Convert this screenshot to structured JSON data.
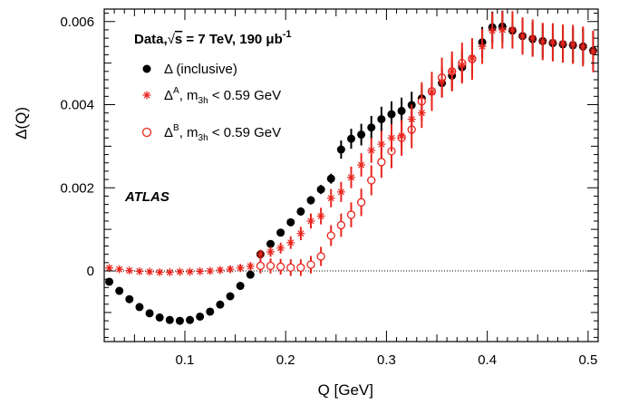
{
  "chart_data": {
    "type": "scatter",
    "xlabel": "Q [GeV]",
    "ylabel": "Δ(Q)",
    "xlim": [
      0.02,
      0.51
    ],
    "ylim": [
      -0.0017,
      0.0063
    ],
    "xticks": [
      0.1,
      0.2,
      0.3,
      0.4,
      0.5
    ],
    "xtick_labels": [
      "0.1",
      "0.2",
      "0.3",
      "0.4",
      "0.5"
    ],
    "yticks": [
      0,
      0.002,
      0.004,
      0.006
    ],
    "ytick_labels": [
      "0",
      "0.002",
      "0.004",
      "0.006"
    ],
    "header": {
      "prefix": "Data,",
      "sqrt_symbol": "√",
      "s": "s",
      "rest": " = 7 TeV, 190 μb",
      "superscript": "-1"
    },
    "experiment_label": "ATLAS",
    "reference_line": {
      "y": 0,
      "style": "dotted"
    },
    "colors": {
      "inclusive": "#000000",
      "A": "#e8251d",
      "B": "#e8251d"
    },
    "legend_position": "top-left",
    "series": [
      {
        "name": "Δ (inclusive)",
        "legend": {
          "symbol": "Δ",
          "sup": "",
          "text": " (inclusive)",
          "sub_prefix": "",
          "sub": "",
          "suffix": ""
        },
        "marker": "filled-circle",
        "x": [
          0.025,
          0.035,
          0.045,
          0.055,
          0.065,
          0.075,
          0.085,
          0.095,
          0.105,
          0.115,
          0.125,
          0.135,
          0.145,
          0.155,
          0.165,
          0.175,
          0.185,
          0.195,
          0.205,
          0.215,
          0.225,
          0.235,
          0.245,
          0.255,
          0.265,
          0.275,
          0.285,
          0.295,
          0.305,
          0.315,
          0.325,
          0.335,
          0.345,
          0.355,
          0.365,
          0.375,
          0.385,
          0.395,
          0.405,
          0.415,
          0.425,
          0.435,
          0.445,
          0.455,
          0.465,
          0.475,
          0.485,
          0.495,
          0.505
        ],
        "y": [
          -0.00026,
          -0.00048,
          -0.00068,
          -0.00087,
          -0.00102,
          -0.00112,
          -0.00118,
          -0.0012,
          -0.00118,
          -0.0011,
          -0.00098,
          -0.00081,
          -0.00061,
          -0.00036,
          -9e-05,
          0.0004,
          0.00065,
          0.00092,
          0.00117,
          0.00143,
          0.0017,
          0.00196,
          0.00222,
          0.00292,
          0.00318,
          0.00328,
          0.00345,
          0.00365,
          0.00377,
          0.00385,
          0.00399,
          0.00415,
          0.00432,
          0.00452,
          0.0047,
          0.0049,
          0.0051,
          0.0055,
          0.00586,
          0.00588,
          0.00578,
          0.00565,
          0.00558,
          0.00553,
          0.00548,
          0.00545,
          0.00543,
          0.0054,
          0.0053
        ],
        "err": [
          4e-05,
          4e-05,
          4e-05,
          4e-05,
          4e-05,
          4e-05,
          4e-05,
          4e-05,
          4e-05,
          4e-05,
          4e-05,
          5e-05,
          5e-05,
          6e-05,
          6e-05,
          7e-05,
          8e-05,
          8e-05,
          9e-05,
          0.0001,
          0.0001,
          0.00011,
          0.00012,
          0.00022,
          0.00024,
          0.00026,
          0.00028,
          0.0003,
          0.00031,
          0.00032,
          0.00032,
          0.00033,
          0.00034,
          0.00034,
          0.00035,
          0.00035,
          0.00036,
          0.00037,
          0.00038,
          0.00038,
          0.00038,
          0.00039,
          0.0004,
          0.0004,
          0.00041,
          0.00042,
          0.00042,
          0.00043,
          0.00045
        ]
      },
      {
        "name": "Δ^A, m_3h < 0.59 GeV",
        "legend": {
          "symbol": "Δ",
          "sup": "A",
          "text": "",
          "sub_prefix": ", m",
          "sub": "3h",
          "suffix": " < 0.59 GeV"
        },
        "marker": "asterisk",
        "x": [
          0.025,
          0.035,
          0.045,
          0.055,
          0.065,
          0.075,
          0.085,
          0.095,
          0.105,
          0.115,
          0.125,
          0.135,
          0.145,
          0.155,
          0.165,
          0.175,
          0.185,
          0.195,
          0.205,
          0.215,
          0.225,
          0.235,
          0.245,
          0.255,
          0.265,
          0.275,
          0.285,
          0.295,
          0.305,
          0.315,
          0.325,
          0.335,
          0.345,
          0.355,
          0.365,
          0.375,
          0.385,
          0.395,
          0.405,
          0.415,
          0.425,
          0.435,
          0.445,
          0.455,
          0.465,
          0.475,
          0.485,
          0.495,
          0.505
        ],
        "y": [
          7e-05,
          4e-05,
          1e-05,
          -1e-05,
          -2e-05,
          -3e-05,
          -3e-05,
          -2e-05,
          -2e-05,
          -1e-05,
          0.0,
          2e-05,
          4e-05,
          7e-05,
          0.00011,
          0.0004,
          0.00046,
          0.00055,
          0.00068,
          0.0009,
          0.0012,
          0.00132,
          0.00175,
          0.0019,
          0.00225,
          0.00255,
          0.0029,
          0.00305,
          0.0032,
          0.00325,
          0.00365,
          0.0038,
          0.0043,
          0.00455,
          0.0048,
          0.00495,
          0.00512,
          0.0054,
          0.00578,
          0.0058,
          0.0058,
          0.00565,
          0.0056,
          0.00552,
          0.0055,
          0.00547,
          0.00545,
          0.0054,
          0.00528
        ],
        "err": [
          5e-05,
          5e-05,
          5e-05,
          5e-05,
          5e-05,
          5e-05,
          5e-05,
          5e-05,
          5e-05,
          5e-05,
          6e-05,
          7e-05,
          8e-05,
          9e-05,
          0.0001,
          0.00011,
          0.00012,
          0.00013,
          0.00015,
          0.00016,
          0.00018,
          0.0002,
          0.00022,
          0.00024,
          0.00026,
          0.00028,
          0.0003,
          0.00032,
          0.00033,
          0.00034,
          0.00035,
          0.00036,
          0.00037,
          0.00038,
          0.00039,
          0.0004,
          0.0004,
          0.00042,
          0.00044,
          0.00045,
          0.00045,
          0.00045,
          0.00045,
          0.00045,
          0.00046,
          0.00046,
          0.00047,
          0.00048,
          0.0005
        ]
      },
      {
        "name": "Δ^B, m_3h < 0.59 GeV",
        "legend": {
          "symbol": "Δ",
          "sup": "B",
          "text": "",
          "sub_prefix": ", m",
          "sub": "3h",
          "suffix": " < 0.59 GeV"
        },
        "marker": "open-circle",
        "x": [
          0.175,
          0.185,
          0.195,
          0.205,
          0.215,
          0.225,
          0.235,
          0.245,
          0.255,
          0.265,
          0.275,
          0.285,
          0.295,
          0.305,
          0.315,
          0.325,
          0.335,
          0.345,
          0.355,
          0.365,
          0.375,
          0.385
        ],
        "y": [
          0.00012,
          0.00012,
          0.0001,
          8e-05,
          8e-05,
          0.00015,
          0.00035,
          0.00085,
          0.0011,
          0.00135,
          0.00165,
          0.00218,
          0.00262,
          0.00288,
          0.0032,
          0.0034,
          0.00408,
          0.00432,
          0.00465,
          0.0048,
          0.005,
          0.0051
        ],
        "err": [
          0.00018,
          0.00018,
          0.00019,
          0.0002,
          0.0002,
          0.00021,
          0.00023,
          0.00025,
          0.00028,
          0.0003,
          0.00033,
          0.00036,
          0.00038,
          0.00041,
          0.00043,
          0.00045,
          0.00046,
          0.00047,
          0.00048,
          0.00048,
          0.00049,
          0.0005
        ]
      }
    ]
  }
}
